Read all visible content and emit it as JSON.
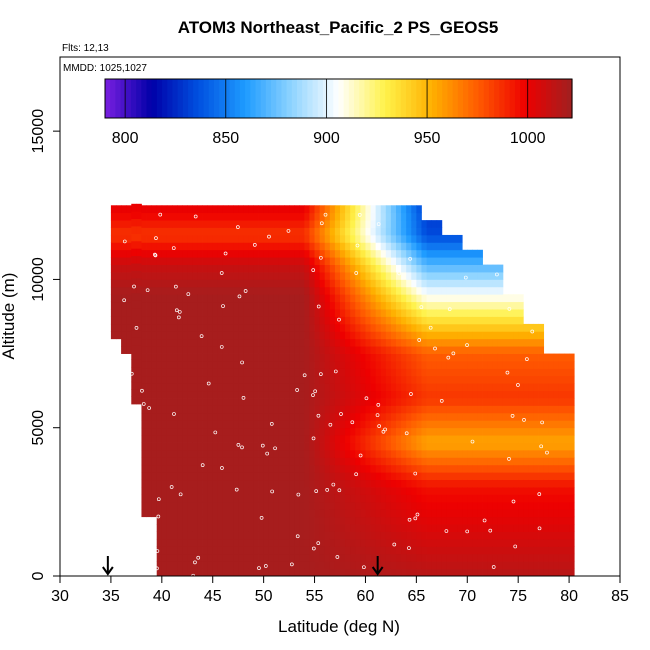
{
  "chart_data": {
    "type": "heatmap",
    "title": "ATOM3 Northeast_Pacific_2 PS_GEOS5",
    "annotations": {
      "flights": "Flts: 12,13",
      "dates": "MMDD: 1025,1027"
    },
    "xlabel": "Latitude (deg N)",
    "ylabel": "Altitude (m)",
    "xlim": [
      30,
      85
    ],
    "ylim": [
      0,
      17500
    ],
    "x_ticks": [
      "30",
      "35",
      "40",
      "45",
      "50",
      "55",
      "60",
      "65",
      "70",
      "75",
      "80",
      "85"
    ],
    "y_ticks": [
      "0",
      "5000",
      "10000",
      "15000"
    ],
    "colorbar": {
      "variable": "PS_GEOS5",
      "range": [
        790,
        1022
      ],
      "ticks": [
        "800",
        "850",
        "900",
        "950",
        "1000"
      ],
      "colors": [
        "#7a1fe0",
        "#0000a8",
        "#0050e0",
        "#1e9bff",
        "#8fd4ff",
        "#ffffff",
        "#fff24a",
        "#ffb000",
        "#ff5a00",
        "#ee0000",
        "#a02020"
      ]
    },
    "arrows_lat": [
      34.7,
      61.2
    ],
    "coverage": [
      [
        35.5,
        8000,
        12500
      ],
      [
        36.5,
        7500,
        12500
      ],
      [
        37.5,
        5800,
        12400
      ],
      [
        38.5,
        2000,
        12300
      ],
      [
        40.0,
        0,
        12300
      ],
      [
        42.5,
        0,
        12300
      ],
      [
        47.5,
        0,
        12300
      ],
      [
        52.5,
        0,
        12300
      ],
      [
        57.5,
        0,
        12300
      ],
      [
        62.5,
        0,
        12300
      ],
      [
        64.5,
        0,
        12300
      ],
      [
        66.5,
        0,
        12000
      ],
      [
        68.5,
        0,
        11500
      ],
      [
        70.5,
        0,
        11000
      ],
      [
        72.5,
        0,
        10500
      ],
      [
        74.5,
        0,
        9500
      ],
      [
        76.5,
        0,
        8500
      ],
      [
        78.5,
        0,
        7500
      ],
      [
        80.0,
        0,
        7400
      ]
    ],
    "pressure_profile": [
      {
        "alt": 12300,
        "PS_GEOS5_south": 1000,
        "PS_GEOS5_north": 830
      },
      {
        "alt": 11500,
        "PS_GEOS5_south": 985,
        "PS_GEOS5_north": 835
      },
      {
        "alt": 10500,
        "PS_GEOS5_south": 1010,
        "PS_GEOS5_north": 870
      },
      {
        "alt": 9500,
        "PS_GEOS5_south": 1020,
        "PS_GEOS5_north": 905
      },
      {
        "alt": 8500,
        "PS_GEOS5_south": 1020,
        "PS_GEOS5_north": 940
      },
      {
        "alt": 7500,
        "PS_GEOS5_south": 1020,
        "PS_GEOS5_north": 975
      },
      {
        "alt": 6000,
        "PS_GEOS5_south": 1020,
        "PS_GEOS5_north": 985
      },
      {
        "alt": 4500,
        "PS_GEOS5_south": 1020,
        "PS_GEOS5_north": 955
      },
      {
        "alt": 3000,
        "PS_GEOS5_south": 1020,
        "PS_GEOS5_north": 995
      },
      {
        "alt": 0,
        "PS_GEOS5_south": 1020,
        "PS_GEOS5_north": 1015
      }
    ]
  }
}
